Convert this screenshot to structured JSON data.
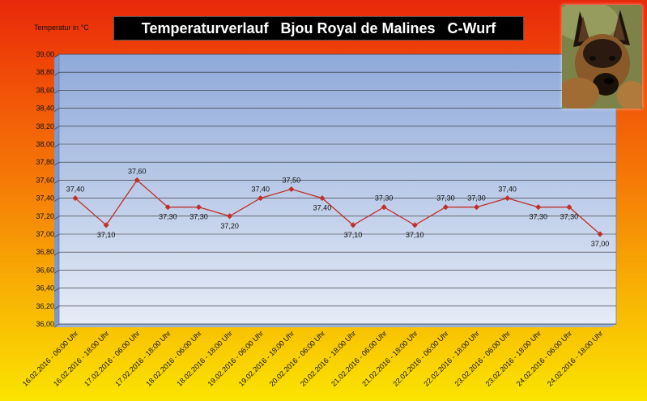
{
  "chart_data": {
    "type": "line",
    "title": "Temperaturverlauf   Bjou Royal de Malines   C-Wurf",
    "ylabel": "Temperatur in °C",
    "xlabel": "",
    "ylim": [
      36.0,
      39.0
    ],
    "ystep": 0.2,
    "grid": true,
    "legend": "none",
    "line_color": "#c0302a",
    "categories": [
      "16.02.2016 - 06:00 Uhr",
      "16.02.2016 - 18:00 Uhr",
      "17.02.2016 - 06:00 Uhr",
      "17.02.2016 - 18:00 Uhr",
      "18.02.2016 - 06:00 Uhr",
      "18.02.2016 - 18:00 Uhr",
      "19.02.2016 - 06:00 Uhr",
      "19.02.2016 - 18:00 Uhr",
      "20.02.2016 - 06:00 Uhr",
      "20.02.2016 - 18:00 Uhr",
      "21.02.2016 - 06:00 Uhr",
      "21.02.2016 - 18:00 Uhr",
      "22.02.2016 - 06:00 Uhr",
      "22.02.2016 - 18:00 Uhr",
      "23.02.2016 - 06:00 Uhr",
      "23.02.2016 - 18:00 Uhr",
      "24.02.2016 - 06:00 Uhr",
      "24.02.2016 - 18:00 Uhr"
    ],
    "values": [
      37.4,
      37.1,
      37.6,
      37.3,
      37.3,
      37.2,
      37.4,
      37.5,
      37.4,
      37.1,
      37.3,
      37.1,
      37.3,
      37.3,
      37.4,
      37.3,
      37.3,
      37.0
    ],
    "value_labels": [
      "37,40",
      "37,10",
      "37,60",
      "37,30",
      "37,30",
      "37,20",
      "37,40",
      "37,50",
      "37,40",
      "37,10",
      "37,30",
      "37,10",
      "37,30",
      "37,30",
      "37,40",
      "37,30",
      "37,30",
      "37,00"
    ],
    "label_positions": [
      "above",
      "below",
      "above",
      "below",
      "below",
      "below",
      "above",
      "above",
      "below",
      "below",
      "above",
      "below",
      "above",
      "above",
      "above",
      "below",
      "below",
      "below"
    ]
  },
  "photo": {
    "subject": "dog-photo"
  }
}
